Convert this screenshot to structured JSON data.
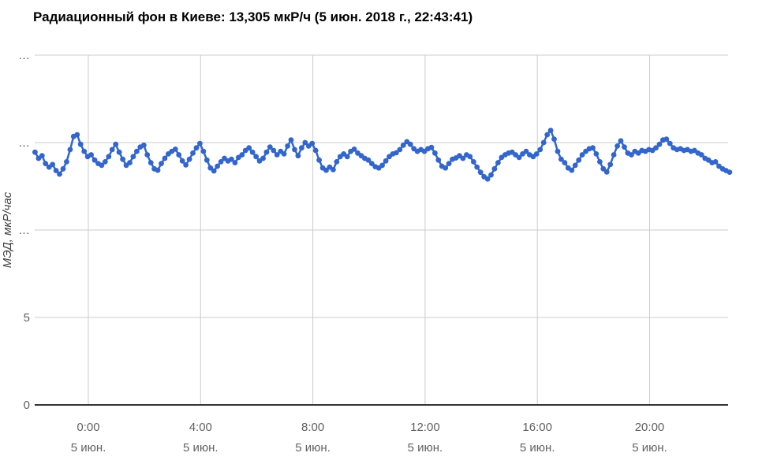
{
  "chart_data": {
    "type": "line",
    "title": "Радиационный фон в Киеве: 13,305 мкР/ч (5 июн. 2018 г., 22:43:41)",
    "ylabel": "МЭД, мкР/час",
    "current_value": "13,305",
    "current_value_units": "мкР/ч",
    "current_timestamp": "5 июн. 2018 г., 22:43:41",
    "grid_color": "#cccccc",
    "baseline_color": "#333333",
    "tick_label_color": "#616161",
    "legend": "none",
    "y_axis": {
      "range": [
        0,
        20
      ],
      "ticks": [
        {
          "value": 0,
          "label": "0"
        },
        {
          "value": 5,
          "label": "5"
        },
        {
          "value": 10,
          "label": "…"
        },
        {
          "value": 15,
          "label": "…"
        },
        {
          "value": 20,
          "label": "…"
        }
      ]
    },
    "x_axis": {
      "tick_hours": [
        0,
        4,
        8,
        12,
        16,
        20
      ],
      "tick_times": [
        "0:00",
        "4:00",
        "8:00",
        "12:00",
        "16:00",
        "20:00"
      ],
      "tick_date": "5 июн.",
      "x_start_hours": -1.9,
      "x_step_hours": 0.125
    },
    "series": [
      {
        "name": "МЭД, мкР/час",
        "color": "#3366cc",
        "values": [
          14.45,
          14.1,
          14.25,
          13.8,
          13.6,
          13.75,
          13.4,
          13.2,
          13.5,
          13.9,
          14.6,
          15.35,
          15.45,
          14.9,
          14.5,
          14.2,
          14.3,
          14.0,
          13.8,
          13.7,
          13.9,
          14.2,
          14.6,
          14.9,
          14.45,
          14.05,
          13.7,
          13.85,
          14.2,
          14.5,
          14.75,
          14.85,
          14.3,
          13.85,
          13.5,
          13.42,
          13.8,
          14.1,
          14.35,
          14.5,
          14.62,
          14.3,
          13.95,
          13.72,
          14.05,
          14.4,
          14.7,
          14.95,
          14.5,
          14.0,
          13.55,
          13.38,
          13.65,
          13.9,
          14.1,
          13.95,
          14.05,
          13.85,
          14.15,
          14.3,
          14.55,
          14.7,
          14.45,
          14.2,
          13.95,
          14.1,
          14.45,
          14.75,
          14.55,
          14.3,
          14.5,
          14.35,
          14.8,
          15.15,
          14.6,
          14.25,
          14.7,
          15.0,
          14.8,
          14.95,
          14.55,
          14.0,
          13.55,
          13.42,
          13.6,
          13.45,
          13.9,
          14.2,
          14.35,
          14.2,
          14.5,
          14.62,
          14.4,
          14.25,
          14.1,
          14.0,
          13.8,
          13.62,
          13.55,
          13.7,
          13.95,
          14.2,
          14.35,
          14.42,
          14.6,
          14.85,
          15.05,
          14.9,
          14.65,
          14.5,
          14.6,
          14.5,
          14.65,
          14.72,
          14.4,
          14.0,
          13.65,
          13.55,
          13.8,
          14.05,
          14.12,
          14.25,
          14.1,
          14.3,
          14.2,
          13.9,
          13.6,
          13.3,
          13.05,
          12.92,
          13.15,
          13.5,
          13.85,
          14.15,
          14.3,
          14.4,
          14.45,
          14.3,
          14.15,
          14.35,
          14.5,
          14.3,
          14.2,
          14.35,
          14.6,
          15.0,
          15.45,
          15.7,
          15.2,
          14.5,
          14.05,
          13.85,
          13.55,
          13.42,
          13.7,
          14.0,
          14.3,
          14.5,
          14.65,
          14.7,
          14.35,
          13.9,
          13.5,
          13.32,
          13.75,
          14.3,
          14.8,
          15.1,
          14.75,
          14.4,
          14.3,
          14.5,
          14.4,
          14.55,
          14.5,
          14.6,
          14.55,
          14.7,
          14.9,
          15.15,
          15.2,
          14.95,
          14.7,
          14.6,
          14.65,
          14.55,
          14.6,
          14.5,
          14.55,
          14.4,
          14.3,
          14.1,
          14.0,
          13.85,
          13.9,
          13.65,
          13.5,
          13.4,
          13.305
        ]
      }
    ]
  }
}
